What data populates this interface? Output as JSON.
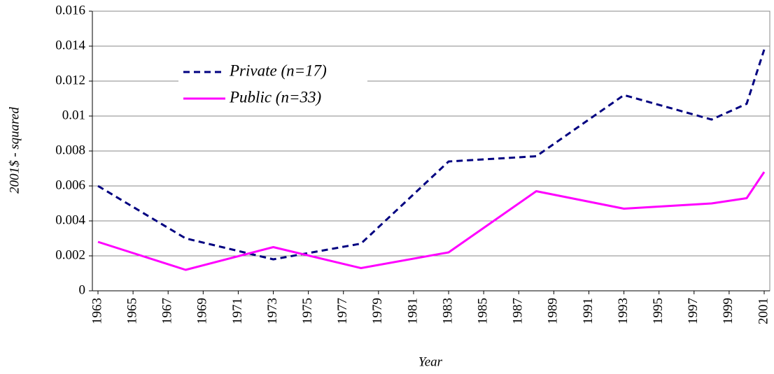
{
  "chart_data": {
    "type": "line",
    "x_label": "Year",
    "y_label": "2001$ - squared",
    "x": [
      1963,
      1968,
      1973,
      1978,
      1983,
      1988,
      1993,
      1998,
      2000,
      2001
    ],
    "series": [
      {
        "name": "Private (n=17)",
        "color": "#000080",
        "dashed": true,
        "values": [
          0.006,
          0.003,
          0.0018,
          0.0027,
          0.0074,
          0.0077,
          0.0112,
          0.0098,
          0.0107,
          0.0138
        ]
      },
      {
        "name": "Public (n=33)",
        "color": "#ff00ff",
        "dashed": false,
        "values": [
          0.0028,
          0.0012,
          0.0025,
          0.0013,
          0.0022,
          0.0057,
          0.0047,
          0.005,
          0.0053,
          0.0068
        ]
      }
    ],
    "xlim": [
      1962.68,
      2001.32
    ],
    "xticks": [
      1963,
      1965,
      1967,
      1969,
      1971,
      1973,
      1975,
      1977,
      1979,
      1981,
      1983,
      1985,
      1987,
      1989,
      1991,
      1993,
      1995,
      1997,
      1999,
      2001
    ],
    "ylim": [
      0,
      0.016
    ],
    "yticks": [
      0,
      0.002,
      0.004,
      0.006,
      0.008,
      0.01,
      0.012,
      0.014,
      0.016
    ],
    "grid": true
  }
}
